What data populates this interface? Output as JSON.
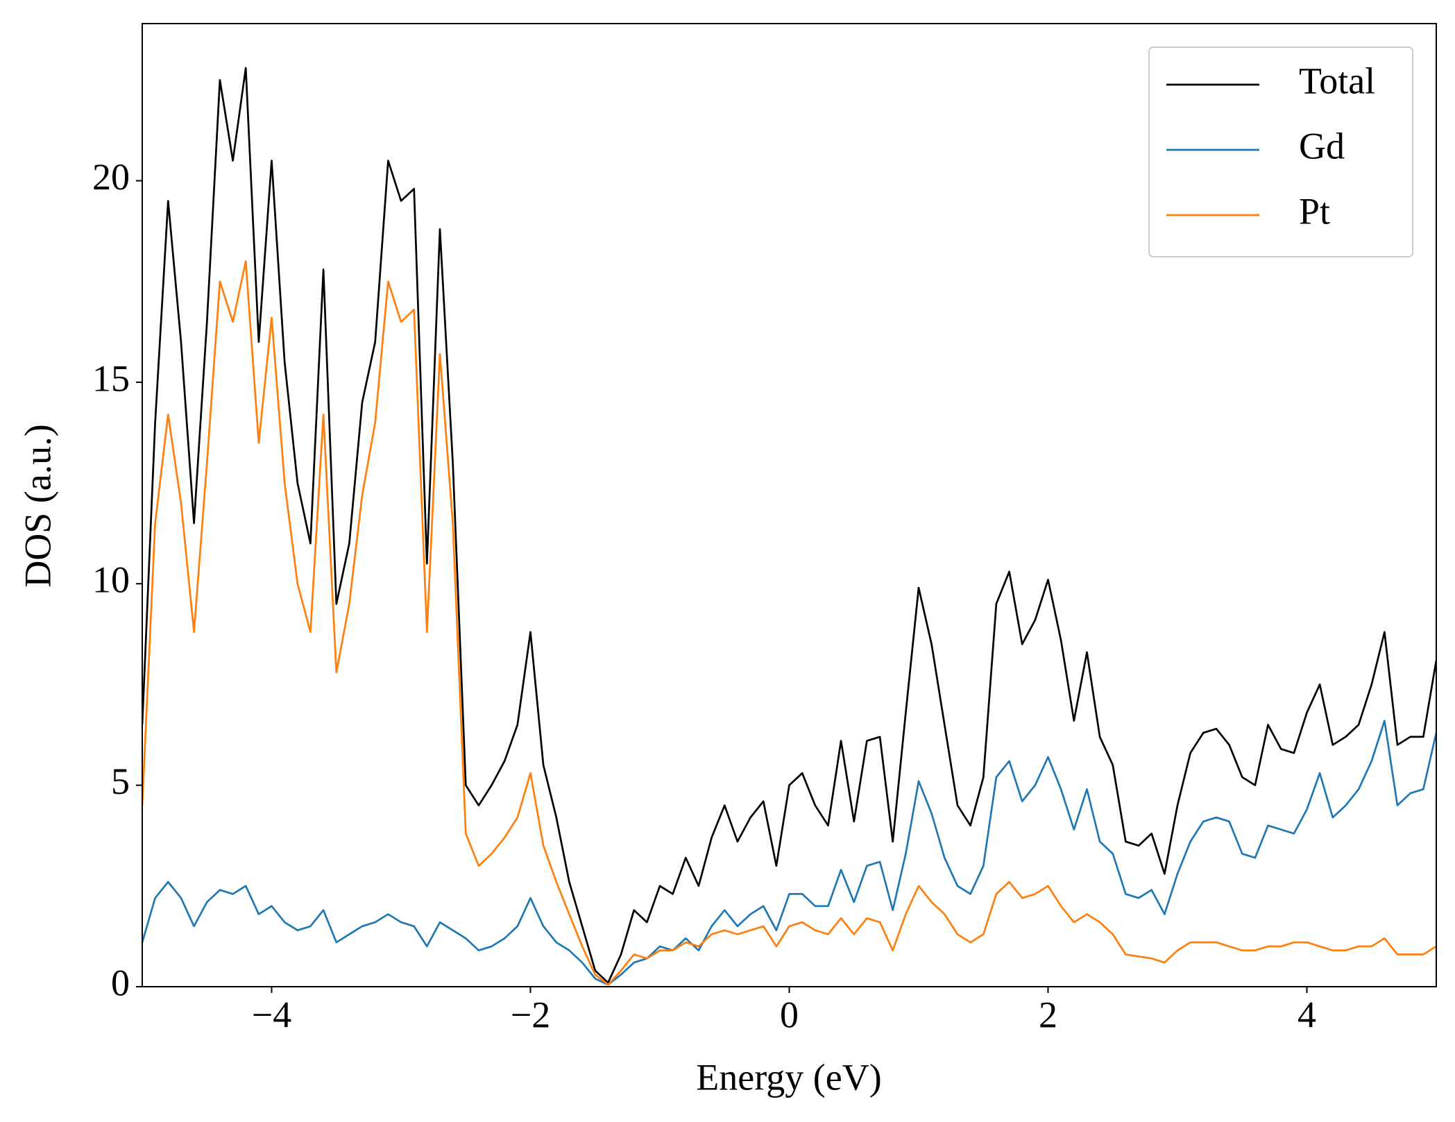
{
  "chart_data": {
    "type": "line",
    "xlabel": "Energy (eV)",
    "ylabel": "DOS (a.u.)",
    "xlim": [
      -5,
      5
    ],
    "ylim": [
      0,
      23.9
    ],
    "xticks": [
      {
        "value": -4,
        "label": "−4"
      },
      {
        "value": -2,
        "label": "−2"
      },
      0,
      2,
      4
    ],
    "yticks": [
      0,
      5,
      10,
      15,
      20
    ],
    "legend": "upper right",
    "x": [
      -5,
      -4.9,
      -4.8,
      -4.7,
      -4.6,
      -4.5,
      -4.4,
      -4.3,
      -4.2,
      -4.1,
      -4,
      -3.9,
      -3.8,
      -3.7,
      -3.6,
      -3.5,
      -3.4,
      -3.3,
      -3.2,
      -3.1,
      -3,
      -2.9,
      -2.8,
      -2.7,
      -2.6,
      -2.5,
      -2.4,
      -2.3,
      -2.2,
      -2.1,
      -2,
      -1.9,
      -1.8,
      -1.7,
      -1.6,
      -1.5,
      -1.4,
      -1.3,
      -1.2,
      -1.1,
      -1,
      -0.9,
      -0.8,
      -0.7,
      -0.6,
      -0.5,
      -0.4,
      -0.3,
      -0.2,
      -0.1,
      0,
      0.1,
      0.2,
      0.3,
      0.4,
      0.5,
      0.6,
      0.7,
      0.8,
      0.9,
      1,
      1.1,
      1.2,
      1.3,
      1.4,
      1.5,
      1.6,
      1.7,
      1.8,
      1.9,
      2,
      2.1,
      2.2,
      2.3,
      2.4,
      2.5,
      2.6,
      2.7,
      2.8,
      2.9,
      3,
      3.1,
      3.2,
      3.3,
      3.4,
      3.5,
      3.6,
      3.7,
      3.8,
      3.9,
      4,
      4.1,
      4.2,
      4.3,
      4.4,
      4.5,
      4.6,
      4.7,
      4.8,
      4.9,
      5
    ],
    "series": [
      {
        "name": "Total",
        "color": "#000000",
        "values": [
          6.5,
          14,
          19.5,
          16,
          11.5,
          16.5,
          22.5,
          20.5,
          22.8,
          16,
          20.5,
          15.5,
          12.5,
          11,
          17.8,
          9.5,
          11,
          14.5,
          16,
          20.5,
          19.5,
          19.8,
          10.5,
          18.8,
          13,
          5,
          4.5,
          5,
          5.6,
          6.5,
          8.8,
          5.5,
          4.2,
          2.6,
          1.5,
          0.4,
          0.1,
          0.8,
          1.9,
          1.6,
          2.5,
          2.3,
          3.2,
          2.5,
          3.7,
          4.5,
          3.6,
          4.2,
          4.6,
          3,
          5,
          5.3,
          4.5,
          4,
          6.1,
          4.1,
          6.1,
          6.2,
          3.6,
          6.8,
          9.9,
          8.5,
          6.5,
          4.5,
          4,
          5.2,
          9.5,
          10.3,
          8.5,
          9.1,
          10.1,
          8.6,
          6.6,
          8.3,
          6.2,
          5.5,
          3.6,
          3.5,
          3.8,
          2.8,
          4.5,
          5.8,
          6.3,
          6.4,
          6,
          5.2,
          5,
          6.5,
          5.9,
          5.8,
          6.8,
          7.5,
          6,
          6.2,
          6.5,
          7.5,
          8.8,
          6,
          6.2,
          6.2,
          8.1
        ]
      },
      {
        "name": "Gd",
        "color": "#1f77b4",
        "values": [
          1.1,
          2.2,
          2.6,
          2.2,
          1.5,
          2.1,
          2.4,
          2.3,
          2.5,
          1.8,
          2,
          1.6,
          1.4,
          1.5,
          1.9,
          1.1,
          1.3,
          1.5,
          1.6,
          1.8,
          1.6,
          1.5,
          1,
          1.6,
          1.4,
          1.2,
          0.9,
          1,
          1.2,
          1.5,
          2.2,
          1.5,
          1.1,
          0.9,
          0.6,
          0.2,
          0.05,
          0.3,
          0.6,
          0.7,
          1,
          0.9,
          1.2,
          0.9,
          1.5,
          1.9,
          1.5,
          1.8,
          2,
          1.4,
          2.3,
          2.3,
          2,
          2,
          2.9,
          2.1,
          3,
          3.1,
          1.9,
          3.3,
          5.1,
          4.3,
          3.2,
          2.5,
          2.3,
          3,
          5.2,
          5.6,
          4.6,
          5,
          5.7,
          4.9,
          3.9,
          4.9,
          3.6,
          3.3,
          2.3,
          2.2,
          2.4,
          1.8,
          2.8,
          3.6,
          4.1,
          4.2,
          4.1,
          3.3,
          3.2,
          4,
          3.9,
          3.8,
          4.4,
          5.3,
          4.2,
          4.5,
          4.9,
          5.6,
          6.6,
          4.5,
          4.8,
          4.9,
          6.3
        ]
      },
      {
        "name": "Pt",
        "color": "#ff7f0e",
        "values": [
          4.5,
          11.5,
          14.2,
          12,
          8.8,
          13,
          17.5,
          16.5,
          18,
          13.5,
          16.6,
          12.5,
          10,
          8.8,
          14.2,
          7.8,
          9.5,
          12.2,
          14,
          17.5,
          16.5,
          16.8,
          8.8,
          15.7,
          11.5,
          3.8,
          3,
          3.3,
          3.7,
          4.2,
          5.3,
          3.5,
          2.6,
          1.8,
          1,
          0.3,
          0.05,
          0.4,
          0.8,
          0.7,
          0.9,
          0.9,
          1.1,
          1,
          1.3,
          1.4,
          1.3,
          1.4,
          1.5,
          1,
          1.5,
          1.6,
          1.4,
          1.3,
          1.7,
          1.3,
          1.7,
          1.6,
          0.9,
          1.8,
          2.5,
          2.1,
          1.8,
          1.3,
          1.1,
          1.3,
          2.3,
          2.6,
          2.2,
          2.3,
          2.5,
          2,
          1.6,
          1.8,
          1.6,
          1.3,
          0.8,
          0.75,
          0.7,
          0.6,
          0.9,
          1.1,
          1.1,
          1.1,
          1,
          0.9,
          0.9,
          1,
          1,
          1.1,
          1.1,
          1,
          0.9,
          0.9,
          1,
          1,
          1.2,
          0.8,
          0.8,
          0.8,
          1
        ]
      }
    ]
  }
}
